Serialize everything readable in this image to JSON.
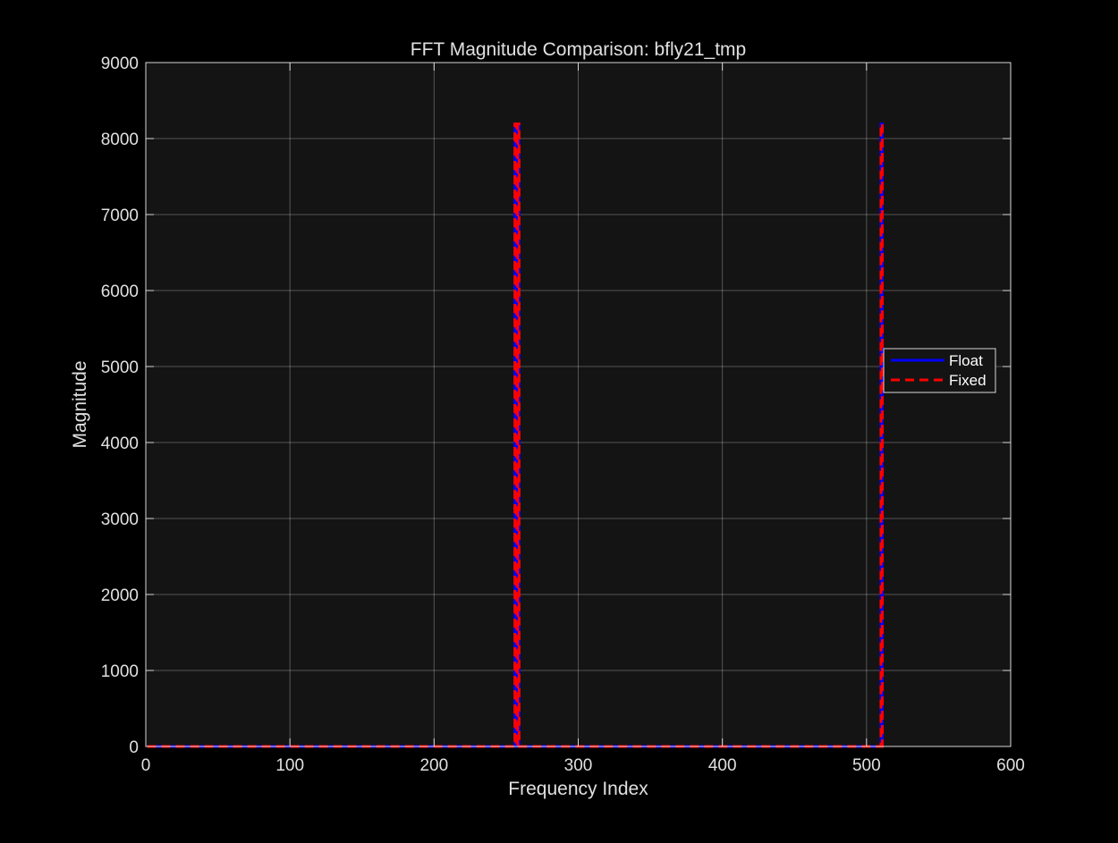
{
  "chart_data": {
    "type": "line",
    "title": "FFT Magnitude Comparison: bfly21_tmp",
    "xlabel": "Frequency Index",
    "ylabel": "Magnitude",
    "xlim": [
      0,
      600
    ],
    "ylim": [
      0,
      9000
    ],
    "xticks": [
      0,
      100,
      200,
      300,
      400,
      500,
      600
    ],
    "yticks": [
      0,
      1000,
      2000,
      3000,
      4000,
      5000,
      6000,
      7000,
      8000,
      9000
    ],
    "grid": true,
    "legend_position": "right",
    "series": [
      {
        "name": "Float",
        "color": "#0000ff",
        "style": "solid",
        "x": [
          1,
          256,
          256,
          257,
          257,
          258,
          258,
          259,
          259,
          510,
          510,
          511,
          511,
          512
        ],
        "y": [
          0,
          0,
          8192,
          8192,
          0,
          0,
          8192,
          8192,
          0,
          0,
          8192,
          8192,
          0,
          0
        ]
      },
      {
        "name": "Fixed",
        "color": "#ff0000",
        "style": "dashed",
        "x": [
          1,
          256,
          256,
          257,
          257,
          258,
          258,
          259,
          259,
          510,
          510,
          511,
          511,
          512
        ],
        "y": [
          0,
          0,
          8192,
          8192,
          0,
          0,
          8192,
          8192,
          0,
          0,
          8192,
          8192,
          0,
          0
        ]
      }
    ]
  }
}
